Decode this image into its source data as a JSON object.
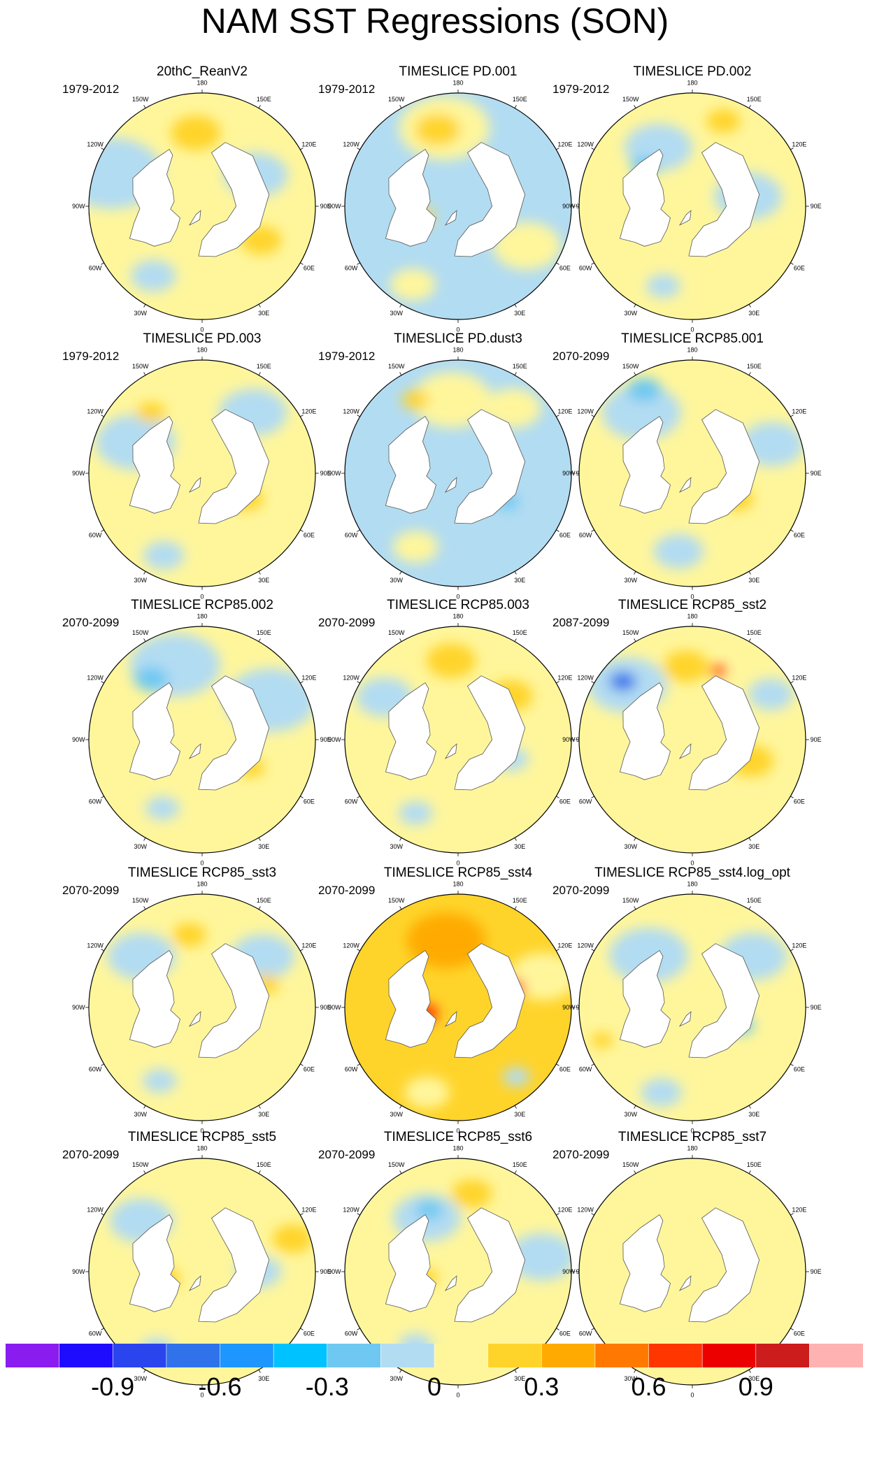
{
  "title": "NAM SST Regressions (SON)",
  "lon_labels": [
    "180",
    "150W",
    "120W",
    "90W",
    "60W",
    "30W",
    "0",
    "30E",
    "60E",
    "90E",
    "120E",
    "150E"
  ],
  "colorbar": {
    "colors": [
      "#8a1cf0",
      "#1e0cff",
      "#2a44ee",
      "#2f72ea",
      "#1e96ff",
      "#00c2ff",
      "#6ec8f2",
      "#b2dcf2",
      "#fff69c",
      "#ffd42a",
      "#ffaa00",
      "#ff7800",
      "#ff3600",
      "#ec0000",
      "#cc1c1c",
      "#ffb2b2"
    ],
    "tick_labels": [
      "-0.9",
      "-0.6",
      "-0.3",
      "0",
      "0.3",
      "0.6",
      "0.9"
    ],
    "tick_values": [
      -0.9,
      -0.6,
      -0.3,
      0,
      0.3,
      0.6,
      0.9
    ],
    "min": -1.2,
    "max": 1.2
  },
  "panels": [
    {
      "title": "20thC_ReanV2",
      "period": "1979-2012",
      "base": "#fff69c",
      "blobs": [
        {
          "v": "#b2dcf2",
          "a": 110,
          "r": 0.85,
          "s": 0.45
        },
        {
          "v": "#ffd42a",
          "a": 175,
          "r": 0.65,
          "s": 0.22
        },
        {
          "v": "#b2dcf2",
          "a": 240,
          "r": 0.55,
          "s": 0.28
        },
        {
          "v": "#ffd42a",
          "a": 300,
          "r": 0.6,
          "s": 0.18
        },
        {
          "v": "#b2dcf2",
          "a": 35,
          "r": 0.75,
          "s": 0.2
        }
      ]
    },
    {
      "title": "TIMESLICE PD.001",
      "period": "1979-2012",
      "base": "#b2dcf2",
      "blobs": [
        {
          "v": "#fff69c",
          "a": 170,
          "r": 0.7,
          "s": 0.4
        },
        {
          "v": "#ffd42a",
          "a": 165,
          "r": 0.7,
          "s": 0.2
        },
        {
          "v": "#fff69c",
          "a": 300,
          "r": 0.7,
          "s": 0.3
        },
        {
          "v": "#ffd42a",
          "a": 75,
          "r": 0.35,
          "s": 0.12
        },
        {
          "v": "#fff69c",
          "a": 30,
          "r": 0.8,
          "s": 0.2
        }
      ]
    },
    {
      "title": "TIMESLICE PD.002",
      "period": "1979-2012",
      "base": "#fff69c",
      "blobs": [
        {
          "v": "#b2dcf2",
          "a": 150,
          "r": 0.6,
          "s": 0.3
        },
        {
          "v": "#6ec8f2",
          "a": 130,
          "r": 0.55,
          "s": 0.12
        },
        {
          "v": "#b2dcf2",
          "a": 260,
          "r": 0.5,
          "s": 0.3
        },
        {
          "v": "#ffd42a",
          "a": 200,
          "r": 0.8,
          "s": 0.15
        },
        {
          "v": "#b2dcf2",
          "a": 20,
          "r": 0.75,
          "s": 0.15
        }
      ]
    },
    {
      "title": "TIMESLICE PD.003",
      "period": "1979-2012",
      "base": "#fff69c",
      "blobs": [
        {
          "v": "#b2dcf2",
          "a": 115,
          "r": 0.65,
          "s": 0.35
        },
        {
          "v": "#b2dcf2",
          "a": 220,
          "r": 0.7,
          "s": 0.3
        },
        {
          "v": "#ffd42a",
          "a": 140,
          "r": 0.7,
          "s": 0.13
        },
        {
          "v": "#ffd42a",
          "a": 300,
          "r": 0.45,
          "s": 0.15
        },
        {
          "v": "#b2dcf2",
          "a": 25,
          "r": 0.8,
          "s": 0.18
        }
      ]
    },
    {
      "title": "TIMESLICE PD.dust3",
      "period": "1979-2012",
      "base": "#b2dcf2",
      "blobs": [
        {
          "v": "#fff69c",
          "a": 175,
          "r": 0.65,
          "s": 0.35
        },
        {
          "v": "#fff69c",
          "a": 220,
          "r": 0.75,
          "s": 0.25
        },
        {
          "v": "#fff69c",
          "a": 30,
          "r": 0.75,
          "s": 0.2
        },
        {
          "v": "#ffd42a",
          "a": 150,
          "r": 0.75,
          "s": 0.12
        },
        {
          "v": "#6ec8f2",
          "a": 300,
          "r": 0.5,
          "s": 0.1
        }
      ]
    },
    {
      "title": "TIMESLICE RCP85.001",
      "period": "2070-2099",
      "base": "#fff69c",
      "blobs": [
        {
          "v": "#b2dcf2",
          "a": 140,
          "r": 0.7,
          "s": 0.35
        },
        {
          "v": "#6ec8f2",
          "a": 150,
          "r": 0.85,
          "s": 0.15
        },
        {
          "v": "#b2dcf2",
          "a": 250,
          "r": 0.75,
          "s": 0.28
        },
        {
          "v": "#ffd42a",
          "a": 300,
          "r": 0.45,
          "s": 0.15
        },
        {
          "v": "#b2dcf2",
          "a": 10,
          "r": 0.7,
          "s": 0.22
        }
      ]
    },
    {
      "title": "TIMESLICE RCP85.002",
      "period": "2070-2099",
      "base": "#fff69c",
      "blobs": [
        {
          "v": "#b2dcf2",
          "a": 160,
          "r": 0.7,
          "s": 0.4
        },
        {
          "v": "#6ec8f2",
          "a": 140,
          "r": 0.7,
          "s": 0.15
        },
        {
          "v": "#b2dcf2",
          "a": 240,
          "r": 0.7,
          "s": 0.4
        },
        {
          "v": "#ffd42a",
          "a": 300,
          "r": 0.5,
          "s": 0.12
        },
        {
          "v": "#b2dcf2",
          "a": 30,
          "r": 0.7,
          "s": 0.15
        }
      ]
    },
    {
      "title": "TIMESLICE RCP85.003",
      "period": "2070-2099",
      "base": "#fff69c",
      "blobs": [
        {
          "v": "#ffd42a",
          "a": 175,
          "r": 0.7,
          "s": 0.22
        },
        {
          "v": "#b2dcf2",
          "a": 120,
          "r": 0.75,
          "s": 0.25
        },
        {
          "v": "#ffd42a",
          "a": 230,
          "r": 0.6,
          "s": 0.2
        },
        {
          "v": "#b2dcf2",
          "a": 290,
          "r": 0.5,
          "s": 0.15
        },
        {
          "v": "#b2dcf2",
          "a": 30,
          "r": 0.75,
          "s": 0.15
        }
      ]
    },
    {
      "title": "TIMESLICE RCP85_sst2",
      "period": "2087-2099",
      "base": "#fff69c",
      "blobs": [
        {
          "v": "#b2dcf2",
          "a": 130,
          "r": 0.75,
          "s": 0.35
        },
        {
          "v": "#2f72ea",
          "a": 130,
          "r": 0.8,
          "s": 0.12
        },
        {
          "v": "#ffd42a",
          "a": 175,
          "r": 0.65,
          "s": 0.2
        },
        {
          "v": "#ff3600",
          "a": 200,
          "r": 0.65,
          "s": 0.07
        },
        {
          "v": "#ffd42a",
          "a": 290,
          "r": 0.55,
          "s": 0.2
        },
        {
          "v": "#b2dcf2",
          "a": 240,
          "r": 0.8,
          "s": 0.2
        }
      ]
    },
    {
      "title": "TIMESLICE RCP85_sst3",
      "period": "2070-2099",
      "base": "#fff69c",
      "blobs": [
        {
          "v": "#b2dcf2",
          "a": 130,
          "r": 0.7,
          "s": 0.3
        },
        {
          "v": "#ffd42a",
          "a": 170,
          "r": 0.65,
          "s": 0.15
        },
        {
          "v": "#b2dcf2",
          "a": 230,
          "r": 0.7,
          "s": 0.28
        },
        {
          "v": "#ffd42a",
          "a": 250,
          "r": 0.6,
          "s": 0.12
        },
        {
          "v": "#b2dcf2",
          "a": 30,
          "r": 0.75,
          "s": 0.15
        }
      ]
    },
    {
      "title": "TIMESLICE RCP85_sst4",
      "period": "2070-2099",
      "base": "#ffd42a",
      "blobs": [
        {
          "v": "#ffaa00",
          "a": 170,
          "r": 0.6,
          "s": 0.35
        },
        {
          "v": "#fff69c",
          "a": 250,
          "r": 0.8,
          "s": 0.3
        },
        {
          "v": "#ff3600",
          "a": 250,
          "r": 0.5,
          "s": 0.12
        },
        {
          "v": "#ff3600",
          "a": 80,
          "r": 0.3,
          "s": 0.12
        },
        {
          "v": "#fff69c",
          "a": 20,
          "r": 0.8,
          "s": 0.2
        },
        {
          "v": "#b2dcf2",
          "a": 320,
          "r": 0.8,
          "s": 0.12
        }
      ]
    },
    {
      "title": "TIMESLICE RCP85_sst4.log_opt",
      "period": "2070-2099",
      "base": "#fff69c",
      "blobs": [
        {
          "v": "#b2dcf2",
          "a": 140,
          "r": 0.6,
          "s": 0.35
        },
        {
          "v": "#b2dcf2",
          "a": 230,
          "r": 0.7,
          "s": 0.3
        },
        {
          "v": "#6ec8f2",
          "a": 290,
          "r": 0.45,
          "s": 0.12
        },
        {
          "v": "#b2dcf2",
          "a": 20,
          "r": 0.8,
          "s": 0.18
        },
        {
          "v": "#ffd42a",
          "a": 70,
          "r": 0.85,
          "s": 0.1
        }
      ]
    },
    {
      "title": "TIMESLICE RCP85_sst5",
      "period": "2070-2099",
      "base": "#fff69c",
      "blobs": [
        {
          "v": "#b2dcf2",
          "a": 130,
          "r": 0.7,
          "s": 0.28
        },
        {
          "v": "#b2dcf2",
          "a": 270,
          "r": 0.5,
          "s": 0.2
        },
        {
          "v": "#ffd42a",
          "a": 250,
          "r": 0.85,
          "s": 0.18
        },
        {
          "v": "#ffd42a",
          "a": 80,
          "r": 0.35,
          "s": 0.15
        },
        {
          "v": "#b2dcf2",
          "a": 30,
          "r": 0.8,
          "s": 0.15
        }
      ]
    },
    {
      "title": "TIMESLICE RCP85_sst6",
      "period": "2070-2099",
      "base": "#fff69c",
      "blobs": [
        {
          "v": "#b2dcf2",
          "a": 150,
          "r": 0.55,
          "s": 0.3
        },
        {
          "v": "#6ec8f2",
          "a": 155,
          "r": 0.6,
          "s": 0.12
        },
        {
          "v": "#ffd42a",
          "a": 190,
          "r": 0.7,
          "s": 0.18
        },
        {
          "v": "#b2dcf2",
          "a": 260,
          "r": 0.75,
          "s": 0.3
        },
        {
          "v": "#ffd42a",
          "a": 80,
          "r": 0.3,
          "s": 0.12
        },
        {
          "v": "#b2dcf2",
          "a": 30,
          "r": 0.75,
          "s": 0.15
        }
      ]
    },
    {
      "title": "TIMESLICE RCP85_sst7",
      "period": "2070-2099",
      "base": "#fff69c",
      "blobs": []
    }
  ]
}
